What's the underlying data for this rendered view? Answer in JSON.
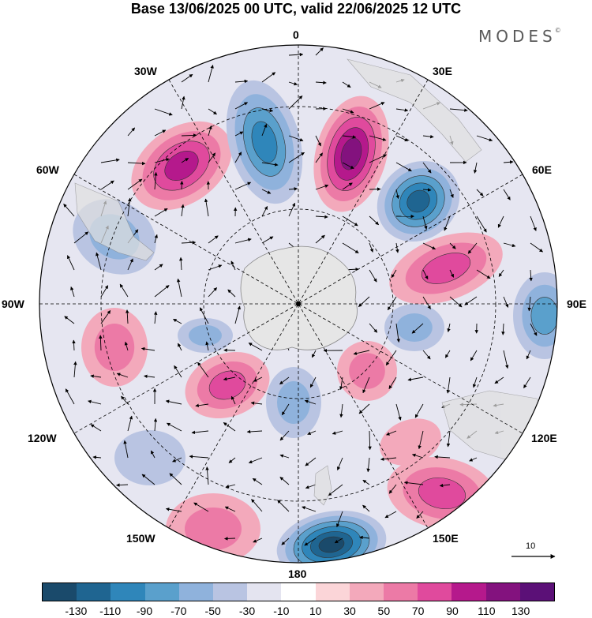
{
  "title": "Base 13/06/2025 00 UTC, valid 22/06/2025 12 UTC",
  "brand": "MODES",
  "brand_mark": "©",
  "longitude_labels": {
    "top": "0",
    "e30": "30E",
    "e60": "60E",
    "e90": "90E",
    "e120": "120E",
    "e150": "150E",
    "bottom": "180",
    "w150": "150W",
    "w120": "120W",
    "w90": "90W",
    "w60": "60W",
    "w30": "30W"
  },
  "reference_vector": "10",
  "colorbar": {
    "colors": [
      "#1a4a6b",
      "#1f6591",
      "#2f86ba",
      "#5aa0cc",
      "#8fb2dc",
      "#b9c4e2",
      "#e4e4f0",
      "#ffffff",
      "#fbd5d8",
      "#f3a9bb",
      "#ec7aa6",
      "#e04a9d",
      "#b5198c",
      "#83127e",
      "#5b1077"
    ],
    "tick_labels": [
      "-130",
      "-110",
      "-90",
      "-70",
      "-50",
      "-30",
      "-10",
      "10",
      "30",
      "50",
      "70",
      "90",
      "110",
      "130"
    ]
  }
}
